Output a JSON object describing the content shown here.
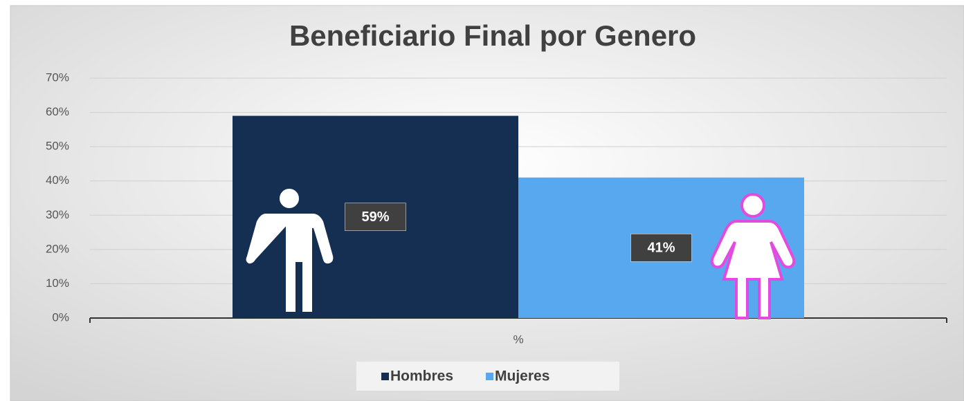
{
  "chart_data": {
    "type": "bar",
    "title": "Beneficiario Final por Genero",
    "categories": [
      "%"
    ],
    "series": [
      {
        "name": "Hombres",
        "color": "#142f52",
        "values": [
          59
        ],
        "value_labels": [
          "59%"
        ]
      },
      {
        "name": "Mujeres",
        "color": "#57a8ef",
        "values": [
          41
        ],
        "value_labels": [
          "41%"
        ]
      }
    ],
    "ylim": [
      0,
      70
    ],
    "yticks": [
      {
        "value": 0,
        "label": "0%"
      },
      {
        "value": 10,
        "label": "10%"
      },
      {
        "value": 20,
        "label": "20%"
      },
      {
        "value": 30,
        "label": "30%"
      },
      {
        "value": 40,
        "label": "40%"
      },
      {
        "value": 50,
        "label": "50%"
      },
      {
        "value": 60,
        "label": "60%"
      },
      {
        "value": 70,
        "label": "70%"
      }
    ],
    "grid": true,
    "legend": "bottom"
  }
}
